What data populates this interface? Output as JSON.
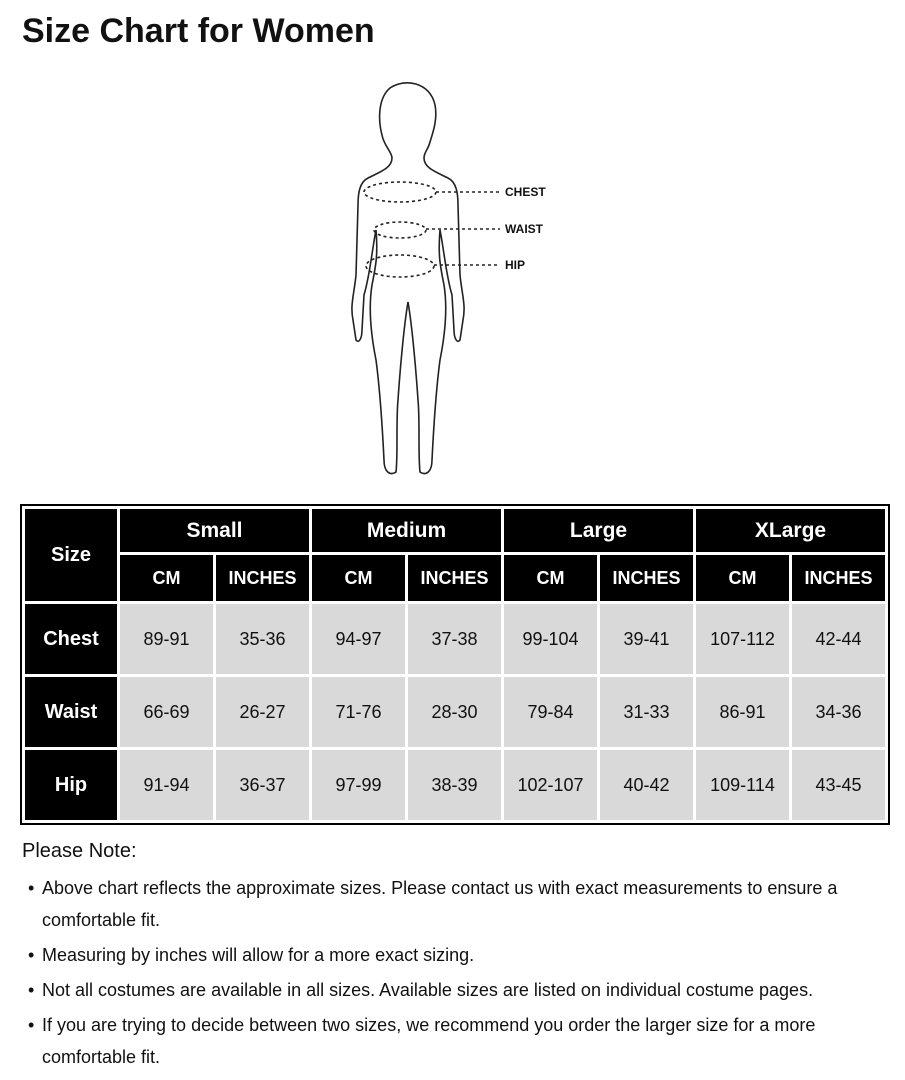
{
  "title": "Size Chart for Women",
  "figure": {
    "labels": [
      "CHEST",
      "WAIST",
      "HIP"
    ]
  },
  "table": {
    "corner": "Size",
    "groups": [
      "Small",
      "Medium",
      "Large",
      "XLarge"
    ],
    "units": [
      "CM",
      "INCHES"
    ],
    "rows": [
      {
        "label": "Chest",
        "values": [
          "89-91",
          "35-36",
          "94-97",
          "37-38",
          "99-104",
          "39-41",
          "107-112",
          "42-44"
        ]
      },
      {
        "label": "Waist",
        "values": [
          "66-69",
          "26-27",
          "71-76",
          "28-30",
          "79-84",
          "31-33",
          "86-91",
          "34-36"
        ]
      },
      {
        "label": "Hip",
        "values": [
          "91-94",
          "36-37",
          "97-99",
          "38-39",
          "102-107",
          "40-42",
          "109-114",
          "43-45"
        ]
      }
    ],
    "header_color": "#000000",
    "cell_color": "#d9d9d9"
  },
  "notes": {
    "title": "Please Note:",
    "bullet": "•",
    "items": [
      "Above chart reflects the approximate sizes. Please contact us with exact measurements to ensure a comfortable fit.",
      "Measuring by inches will allow for a more exact sizing.",
      "Not all costumes are available in all sizes. Available sizes are listed on individual costume pages.",
      "If you are trying to decide between two sizes, we recommend you order the larger size for a more comfortable fit."
    ]
  }
}
